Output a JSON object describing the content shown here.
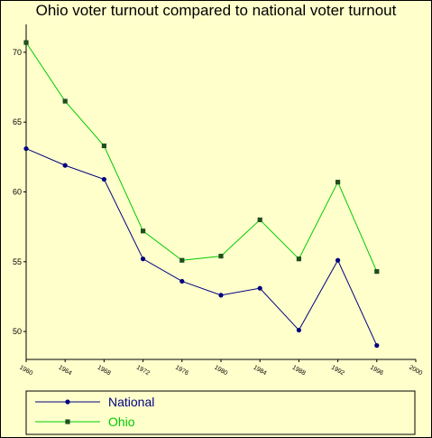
{
  "chart_data": {
    "type": "line",
    "title": "Ohio voter turnout compared to national voter turnout",
    "xlabel": "",
    "ylabel": "",
    "x": [
      1960,
      1964,
      1968,
      1972,
      1976,
      1980,
      1984,
      1988,
      1992,
      1996
    ],
    "x_ticks": [
      "1960",
      "1964",
      "1968",
      "1972",
      "1976",
      "1980",
      "1984",
      "1988",
      "1992",
      "1996",
      "2000"
    ],
    "y_ticks": [
      "50",
      "55",
      "60",
      "65",
      "70"
    ],
    "xlim": [
      1960,
      2000
    ],
    "ylim": [
      48,
      72
    ],
    "grid": false,
    "legend_position": "bottom",
    "series": [
      {
        "name": "National",
        "color": "#000080",
        "marker": "circle",
        "values": [
          63.1,
          61.9,
          60.9,
          55.2,
          53.6,
          52.6,
          53.1,
          50.1,
          55.1,
          49.0
        ]
      },
      {
        "name": "Ohio",
        "color": "#00cc00",
        "marker_color": "#1f4f1f",
        "marker": "square",
        "values": [
          70.7,
          66.5,
          63.3,
          57.2,
          55.1,
          55.4,
          58.0,
          55.2,
          60.7,
          54.3
        ]
      }
    ]
  }
}
